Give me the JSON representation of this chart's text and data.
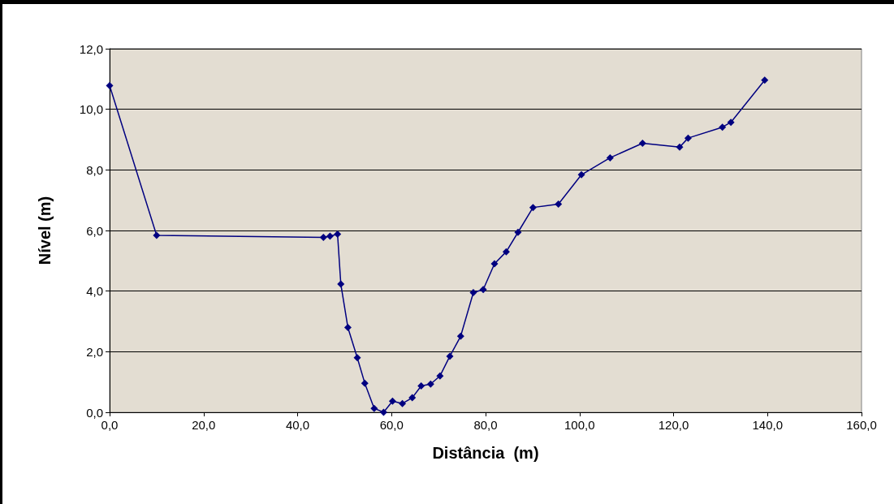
{
  "chart_data": {
    "type": "line",
    "xlabel": "Distância  (m)",
    "ylabel": "Nível (m)",
    "x": [
      0,
      10.0,
      45.5,
      46.9,
      48.5,
      49.2,
      50.7,
      52.7,
      54.3,
      56.3,
      58.3,
      60.2,
      62.3,
      64.4,
      66.3,
      68.3,
      70.3,
      72.4,
      74.7,
      77.4,
      79.5,
      81.9,
      84.4,
      86.9,
      90.1,
      95.5,
      100.4,
      106.5,
      113.4,
      121.3,
      123.1,
      130.4,
      132.2,
      139.4
    ],
    "series": [
      {
        "color": "#000080",
        "values": [
          10.78,
          5.84,
          5.77,
          5.81,
          5.88,
          4.23,
          2.8,
          1.8,
          0.96,
          0.13,
          0,
          0.37,
          0.29,
          0.48,
          0.87,
          0.93,
          1.2,
          1.85,
          2.51,
          3.95,
          4.05,
          4.9,
          5.3,
          5.94,
          6.76,
          6.87,
          7.84,
          8.4,
          8.88,
          8.75,
          9.05,
          9.41,
          9.57,
          10.96
        ]
      }
    ],
    "xlim": [
      0,
      160
    ],
    "xticks": [
      {
        "value": 0,
        "label": "0,0"
      },
      {
        "value": 20,
        "label": "20,0"
      },
      {
        "value": 40,
        "label": "40,0"
      },
      {
        "value": 60,
        "label": "60,0"
      },
      {
        "value": 80,
        "label": "80,0"
      },
      {
        "value": 100,
        "label": "100,0"
      },
      {
        "value": 120,
        "label": "120,0"
      },
      {
        "value": 140,
        "label": "140,0"
      },
      {
        "value": 160,
        "label": "160,0"
      }
    ],
    "ylim": [
      0,
      12
    ],
    "yticks": [
      {
        "value": 0,
        "label": "0,0"
      },
      {
        "value": 2,
        "label": "2,0"
      },
      {
        "value": 4,
        "label": "4,0"
      },
      {
        "value": 6,
        "label": "6,0"
      },
      {
        "value": 8,
        "label": "8,0"
      },
      {
        "value": 10,
        "label": "10,0"
      },
      {
        "value": 12,
        "label": "12,0"
      }
    ],
    "grid": "y",
    "marker": "diamond",
    "line_style": "solid"
  }
}
